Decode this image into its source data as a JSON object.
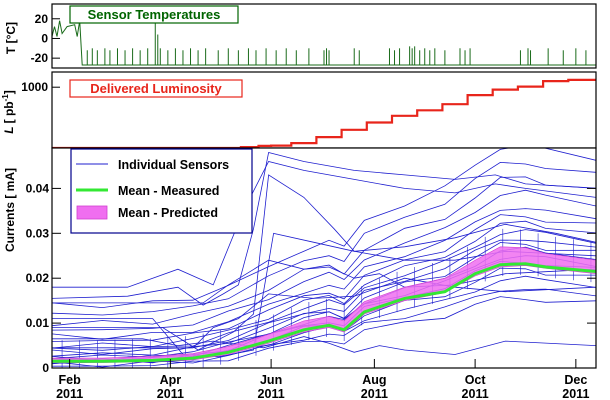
{
  "chart_data": [
    {
      "type": "line",
      "panel": "temperature",
      "title": "Sensor Temperatures",
      "ylabel": "T [°C]",
      "yticks": [
        "20",
        "0",
        "-20"
      ],
      "ytick_values": [
        20,
        0,
        -20
      ],
      "ylim": [
        -30,
        35
      ],
      "xlim": [
        0,
        10.8
      ],
      "series": [
        {
          "name": "Sensor Temperatures",
          "baseline": -27,
          "x_start": [
            0,
            0.05,
            0.1,
            0.15,
            0.2,
            0.3,
            0.45,
            0.5,
            0.55
          ],
          "y_start": [
            2,
            12,
            2,
            18,
            5,
            12,
            14,
            2,
            18
          ],
          "spikes": [
            {
              "x": 0.7,
              "y": -12
            },
            {
              "x": 0.8,
              "y": -10
            },
            {
              "x": 0.9,
              "y": -12
            },
            {
              "x": 1.05,
              "y": -10
            },
            {
              "x": 1.15,
              "y": -12
            },
            {
              "x": 1.3,
              "y": -10
            },
            {
              "x": 1.45,
              "y": -12
            },
            {
              "x": 1.6,
              "y": -10
            },
            {
              "x": 1.75,
              "y": -12
            },
            {
              "x": 1.9,
              "y": -10
            },
            {
              "x": 2.05,
              "y": 24
            },
            {
              "x": 2.1,
              "y": 4
            },
            {
              "x": 2.15,
              "y": -10
            },
            {
              "x": 2.3,
              "y": -12
            },
            {
              "x": 2.45,
              "y": -10
            },
            {
              "x": 2.6,
              "y": -12
            },
            {
              "x": 2.75,
              "y": -10
            },
            {
              "x": 2.9,
              "y": -12
            },
            {
              "x": 3.05,
              "y": -10
            },
            {
              "x": 3.3,
              "y": -12
            },
            {
              "x": 3.5,
              "y": -10
            },
            {
              "x": 3.7,
              "y": -12
            },
            {
              "x": 3.9,
              "y": -10
            },
            {
              "x": 4.05,
              "y": -12
            },
            {
              "x": 4.25,
              "y": -10
            },
            {
              "x": 4.45,
              "y": -12
            },
            {
              "x": 4.65,
              "y": -10
            },
            {
              "x": 4.85,
              "y": -12
            },
            {
              "x": 5.1,
              "y": -10
            },
            {
              "x": 5.4,
              "y": -12
            },
            {
              "x": 5.45,
              "y": -10
            },
            {
              "x": 5.5,
              "y": -12
            },
            {
              "x": 6.0,
              "y": -10
            },
            {
              "x": 6.1,
              "y": -12
            },
            {
              "x": 6.7,
              "y": -10
            },
            {
              "x": 6.8,
              "y": -12
            },
            {
              "x": 6.9,
              "y": -10
            },
            {
              "x": 7.1,
              "y": -8
            },
            {
              "x": 7.15,
              "y": -10
            },
            {
              "x": 7.2,
              "y": -8
            },
            {
              "x": 7.3,
              "y": -12
            },
            {
              "x": 7.4,
              "y": -10
            },
            {
              "x": 7.5,
              "y": -12
            },
            {
              "x": 7.6,
              "y": -10
            },
            {
              "x": 7.8,
              "y": -12
            },
            {
              "x": 8.1,
              "y": -10
            },
            {
              "x": 8.2,
              "y": -12
            },
            {
              "x": 8.3,
              "y": -10
            },
            {
              "x": 9.3,
              "y": -12
            },
            {
              "x": 9.45,
              "y": -10
            },
            {
              "x": 9.5,
              "y": -12
            },
            {
              "x": 9.85,
              "y": -10
            },
            {
              "x": 10.15,
              "y": -12
            },
            {
              "x": 10.4,
              "y": -10
            },
            {
              "x": 10.6,
              "y": -12
            }
          ]
        }
      ]
    },
    {
      "type": "line",
      "panel": "luminosity",
      "title": "Delivered Luminosity",
      "ylabel": "L [ pb⁻¹]",
      "ylabel_main": "L",
      "ylabel_unit": "[ pb",
      "ylabel_sup": "-1",
      "ylabel_close": "]",
      "yticks": [
        "1000"
      ],
      "ytick_values": [
        1000
      ],
      "ylim": [
        0,
        1250
      ],
      "xlim": [
        0,
        10.8
      ],
      "series": [
        {
          "name": "Delivered Luminosity",
          "x": [
            0,
            3.5,
            4.0,
            4.2,
            4.5,
            5.0,
            5.5,
            6.0,
            6.5,
            7.0,
            7.5,
            8.0,
            8.5,
            9.0,
            9.5,
            10.0,
            10.5,
            10.8
          ],
          "y": [
            0,
            0,
            15,
            35,
            40,
            80,
            180,
            300,
            420,
            530,
            620,
            720,
            870,
            960,
            1010,
            1100,
            1120,
            1120
          ]
        }
      ]
    },
    {
      "type": "line",
      "panel": "currents",
      "ylabel": "Currents [ mA]",
      "yticks": [
        "0",
        "0.01",
        "0.02",
        "0.03",
        "0.04"
      ],
      "ytick_values": [
        0,
        0.01,
        0.02,
        0.03,
        0.04
      ],
      "ylim": [
        0,
        0.049
      ],
      "xlim": [
        0,
        10.8
      ],
      "xticks": [
        {
          "value": 0.35,
          "month": "Feb",
          "year": "2011"
        },
        {
          "value": 2.35,
          "month": "Apr",
          "year": "2011"
        },
        {
          "value": 4.35,
          "month": "Jun",
          "year": "2011"
        },
        {
          "value": 6.4,
          "month": "Aug",
          "year": "2011"
        },
        {
          "value": 8.4,
          "month": "Oct",
          "year": "2011"
        },
        {
          "value": 10.4,
          "month": "Dec",
          "year": "2011"
        }
      ],
      "legend": {
        "position": "top-left",
        "entries": [
          "Individual Sensors",
          "Mean - Measured",
          "Mean - Predicted"
        ]
      },
      "series": [
        {
          "name": "Mean - Measured",
          "x": [
            0,
            1,
            2,
            2.8,
            3.5,
            4.3,
            5.0,
            5.5,
            5.8,
            6.2,
            7.0,
            7.8,
            8.4,
            8.9,
            9.4,
            9.8,
            10.8
          ],
          "y": [
            0.0015,
            0.0015,
            0.0017,
            0.0022,
            0.0035,
            0.006,
            0.0085,
            0.0095,
            0.0085,
            0.0125,
            0.0155,
            0.017,
            0.021,
            0.023,
            0.0232,
            0.0225,
            0.0215
          ]
        },
        {
          "name": "Mean - Predicted",
          "x": [
            0,
            1,
            2,
            2.8,
            3.5,
            4.3,
            5.0,
            5.5,
            5.8,
            6.2,
            7.0,
            7.8,
            8.4,
            8.9,
            9.4,
            9.8,
            10.8
          ],
          "y_low": [
            0.0012,
            0.0012,
            0.0014,
            0.0018,
            0.003,
            0.0055,
            0.008,
            0.009,
            0.008,
            0.012,
            0.015,
            0.0168,
            0.0205,
            0.0225,
            0.0228,
            0.0222,
            0.021
          ],
          "y_high": [
            0.0022,
            0.0022,
            0.0026,
            0.0032,
            0.0048,
            0.0075,
            0.0105,
            0.0115,
            0.0105,
            0.0148,
            0.018,
            0.02,
            0.024,
            0.027,
            0.0268,
            0.0255,
            0.024
          ]
        },
        {
          "name": "Individual Sensors",
          "x": [
            0,
            1,
            2,
            2.8,
            3.5,
            4.3,
            5.0,
            5.5,
            5.8,
            6.2,
            7.0,
            7.8,
            8.4,
            8.9,
            9.4,
            9.8,
            10.8
          ],
          "shape": [
            0.0,
            0.0,
            0.01,
            0.04,
            0.1,
            0.2,
            0.3,
            0.34,
            0.3,
            0.44,
            0.54,
            0.62,
            0.74,
            0.84,
            0.85,
            0.82,
            0.78
          ],
          "offsets": [
            0.0004,
            0.0008,
            0.0012,
            0.0015,
            0.0018,
            0.0021,
            0.0025,
            0.003,
            0.0035,
            0.0042,
            0.005,
            0.006,
            0.007,
            0.0085,
            0.01,
            0.012,
            0.014
          ],
          "scales": [
            0.018,
            0.02,
            0.022,
            0.024,
            0.026,
            0.027,
            0.028,
            0.029,
            0.03,
            0.031,
            0.032,
            0.033,
            0.034,
            0.036,
            0.038,
            0.04,
            0.042
          ],
          "extra_lines": [
            {
              "x": [
                0,
                1.5,
                2.5,
                3.2,
                3.8,
                4.3,
                5.0,
                6.0,
                7.0,
                8.0,
                8.8,
                9.4,
                10.8
              ],
              "y": [
                0.018,
                0.018,
                0.022,
                0.0185,
                0.035,
                0.046,
                0.044,
                0.042,
                0.04,
                0.039,
                0.041,
                0.04,
                0.038
              ]
            },
            {
              "x": [
                0,
                1.5,
                2.5,
                3.0,
                3.4,
                3.7,
                4.0,
                4.3,
                5.0,
                6.0,
                7.0,
                8.0,
                8.8,
                9.4,
                10.8
              ],
              "y": [
                0.0155,
                0.016,
                0.018,
                0.014,
                0.0165,
                0.0185,
                0.031,
                0.048,
                0.046,
                0.044,
                0.043,
                0.042,
                0.043,
                0.041,
                0.04
              ]
            },
            {
              "x": [
                0,
                2.0,
                2.6,
                3.3,
                4.0,
                4.4,
                5.2,
                6.0,
                7.0,
                8.0,
                9.0,
                10.0,
                10.8
              ],
              "y": [
                0.011,
                0.011,
                0.003,
                0.0025,
                0.004,
                0.03,
                0.028,
                0.026,
                0.027,
                0.029,
                0.032,
                0.03,
                0.028
              ]
            },
            {
              "x": [
                0,
                2.2,
                2.9,
                3.6,
                4.0,
                4.3,
                5.0,
                5.6,
                6.0,
                7.0,
                8.0,
                9.0,
                10.8
              ],
              "y": [
                0.009,
                0.009,
                0.004,
                0.008,
                0.012,
                0.043,
                0.038,
                0.031,
                0.026,
                0.024,
                0.024,
                0.026,
                0.025
              ]
            },
            {
              "x": [
                0,
                1.8,
                2.5,
                3.2,
                4.2,
                5.0,
                5.5,
                6.0,
                6.5,
                7.0,
                8.0,
                9.0,
                10.8
              ],
              "y": [
                0.0065,
                0.0065,
                0.005,
                0.006,
                0.0045,
                0.007,
                0.0055,
                0.0035,
                0.005,
                0.004,
                0.003,
                0.006,
                0.005
              ]
            },
            {
              "x": [
                0,
                2.8,
                3.2,
                3.7,
                4.3,
                5.2,
                6.0,
                7.0,
                8.0,
                9.0,
                10.8
              ],
              "y": [
                0.0045,
                0.0045,
                0.009,
                0.011,
                0.0165,
                0.0155,
                0.016,
                0.02,
                0.018,
                0.017,
                0.018
              ]
            },
            {
              "x": [
                0,
                3.0,
                3.5,
                4.3,
                5.0,
                5.5,
                6.0,
                6.5,
                7.0,
                8.0,
                9.0,
                10.8
              ],
              "y": [
                0.0145,
                0.0145,
                0.0185,
                0.024,
                0.022,
                0.0225,
                0.02,
                0.021,
                0.018,
                0.0185,
                0.021,
                0.022
              ]
            }
          ]
        }
      ]
    }
  ]
}
